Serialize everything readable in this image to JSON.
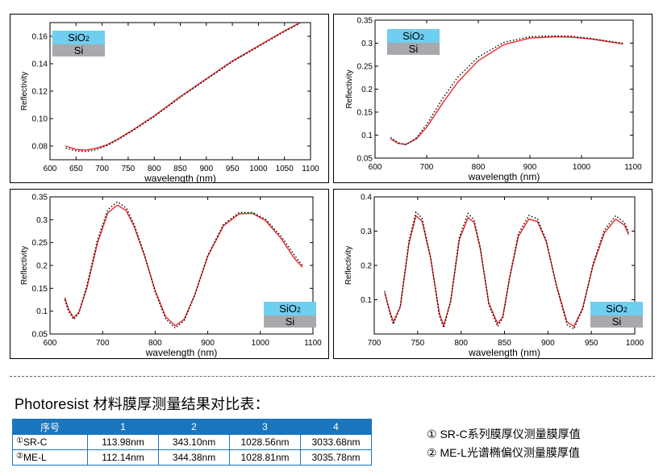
{
  "legend": {
    "top": "SiO",
    "top_sub": "2",
    "bottom": "Si"
  },
  "chart_data": [
    {
      "type": "line",
      "xlabel": "wavelength (nm)",
      "ylabel": "Reflectivity",
      "xlim": [
        600,
        1100
      ],
      "ylim": [
        0.07,
        0.17
      ],
      "xticks": [
        600,
        650,
        700,
        750,
        800,
        850,
        900,
        950,
        1000,
        1050,
        1100
      ],
      "yticks": [
        0.08,
        0.1,
        0.12,
        0.14,
        0.16
      ],
      "ytick_labels": [
        "0.08",
        "0.10",
        "0.12",
        "0.14",
        "0.16"
      ],
      "legend_placement": "top-left",
      "series": [
        {
          "style": "solid",
          "color": "#e8262b",
          "x": [
            630,
            650,
            670,
            690,
            710,
            730,
            760,
            800,
            850,
            900,
            950,
            1000,
            1050,
            1080
          ],
          "y": [
            0.08,
            0.0775,
            0.077,
            0.0785,
            0.081,
            0.085,
            0.092,
            0.102,
            0.116,
            0.129,
            0.142,
            0.153,
            0.164,
            0.17
          ]
        },
        {
          "style": "dotted",
          "color": "#000000",
          "x": [
            630,
            650,
            670,
            690,
            710,
            730,
            760,
            800,
            850,
            900,
            950,
            1000,
            1050,
            1080
          ],
          "y": [
            0.0785,
            0.0765,
            0.076,
            0.0775,
            0.0805,
            0.0845,
            0.0915,
            0.1015,
            0.1155,
            0.1285,
            0.1415,
            0.1525,
            0.1635,
            0.1695
          ]
        }
      ]
    },
    {
      "type": "line",
      "xlabel": "wavelength (nm)",
      "ylabel": "Reflectivity",
      "xlim": [
        600,
        1100
      ],
      "ylim": [
        0.05,
        0.35
      ],
      "xticks": [
        600,
        700,
        800,
        900,
        1000,
        1100
      ],
      "yticks": [
        0.05,
        0.1,
        0.15,
        0.2,
        0.25,
        0.3,
        0.35
      ],
      "ytick_labels": [
        "0.05",
        "0.1",
        "0.15",
        "0.2",
        "0.25",
        "0.3",
        "0.35"
      ],
      "legend_placement": "top-left",
      "series": [
        {
          "style": "solid",
          "color": "#e8262b",
          "x": [
            630,
            645,
            660,
            680,
            700,
            730,
            760,
            800,
            850,
            900,
            950,
            980,
            1020,
            1060,
            1080
          ],
          "y": [
            0.092,
            0.082,
            0.08,
            0.092,
            0.117,
            0.168,
            0.215,
            0.262,
            0.297,
            0.311,
            0.314,
            0.313,
            0.309,
            0.302,
            0.298
          ]
        },
        {
          "style": "dotted",
          "color": "#000000",
          "x": [
            630,
            645,
            660,
            680,
            700,
            730,
            760,
            800,
            850,
            900,
            950,
            980,
            1020,
            1060,
            1080
          ],
          "y": [
            0.095,
            0.083,
            0.079,
            0.094,
            0.123,
            0.178,
            0.226,
            0.27,
            0.302,
            0.314,
            0.316,
            0.315,
            0.31,
            0.303,
            0.3
          ]
        }
      ]
    },
    {
      "type": "line",
      "xlabel": "wavelength (nm)",
      "ylabel": "Reflectivity",
      "xlim": [
        600,
        1100
      ],
      "ylim": [
        0.05,
        0.35
      ],
      "xticks": [
        600,
        700,
        800,
        900,
        1000,
        1100
      ],
      "yticks": [
        0.05,
        0.1,
        0.15,
        0.2,
        0.25,
        0.3,
        0.35
      ],
      "ytick_labels": [
        "0.05",
        "0.1",
        "0.15",
        "0.2",
        "0.25",
        "0.3",
        "0.35"
      ],
      "legend_placement": "bottom-right",
      "series": [
        {
          "style": "solid",
          "color": "#e8262b",
          "x": [
            628,
            635,
            645,
            655,
            670,
            690,
            710,
            728,
            745,
            760,
            780,
            800,
            820,
            838,
            855,
            875,
            900,
            930,
            960,
            985,
            1010,
            1040,
            1065,
            1080
          ],
          "y": [
            0.13,
            0.105,
            0.085,
            0.098,
            0.15,
            0.248,
            0.315,
            0.332,
            0.32,
            0.285,
            0.22,
            0.145,
            0.088,
            0.068,
            0.082,
            0.135,
            0.22,
            0.287,
            0.313,
            0.314,
            0.298,
            0.258,
            0.215,
            0.196
          ]
        },
        {
          "style": "dotted",
          "color": "#000000",
          "x": [
            628,
            635,
            645,
            655,
            670,
            690,
            710,
            728,
            745,
            760,
            780,
            800,
            820,
            838,
            855,
            875,
            900,
            930,
            960,
            985,
            1010,
            1040,
            1065,
            1080
          ],
          "y": [
            0.125,
            0.1,
            0.082,
            0.096,
            0.155,
            0.255,
            0.322,
            0.339,
            0.326,
            0.29,
            0.222,
            0.142,
            0.083,
            0.063,
            0.079,
            0.134,
            0.222,
            0.29,
            0.316,
            0.316,
            0.301,
            0.263,
            0.222,
            0.2
          ]
        }
      ]
    },
    {
      "type": "line",
      "xlabel": "wavelength (nm)",
      "ylabel": "Reflectivity",
      "xlim": [
        700,
        1000
      ],
      "ylim": [
        0.0,
        0.4
      ],
      "xticks": [
        700,
        750,
        800,
        850,
        900,
        950,
        1000
      ],
      "yticks": [
        0.1,
        0.2,
        0.3,
        0.4
      ],
      "ytick_labels": [
        "0.1",
        "0.2",
        "0.3",
        "0.4"
      ],
      "legend_placement": "bottom-right",
      "series": [
        {
          "style": "solid",
          "color": "#e8262b",
          "x": [
            712,
            718,
            722,
            730,
            740,
            748,
            755,
            765,
            775,
            780,
            788,
            798,
            808,
            815,
            822,
            832,
            842,
            848,
            856,
            866,
            878,
            888,
            898,
            910,
            922,
            930,
            940,
            952,
            965,
            978,
            988,
            993
          ],
          "y": [
            0.12,
            0.065,
            0.035,
            0.08,
            0.265,
            0.345,
            0.33,
            0.22,
            0.06,
            0.025,
            0.095,
            0.275,
            0.34,
            0.325,
            0.25,
            0.09,
            0.03,
            0.05,
            0.165,
            0.285,
            0.335,
            0.328,
            0.27,
            0.14,
            0.035,
            0.022,
            0.075,
            0.2,
            0.295,
            0.335,
            0.318,
            0.29
          ]
        },
        {
          "style": "dotted",
          "color": "#000000",
          "x": [
            712,
            718,
            722,
            730,
            740,
            748,
            755,
            765,
            775,
            780,
            788,
            798,
            808,
            815,
            822,
            832,
            842,
            848,
            856,
            866,
            878,
            888,
            898,
            910,
            922,
            930,
            940,
            952,
            965,
            978,
            988,
            993
          ],
          "y": [
            0.125,
            0.06,
            0.028,
            0.08,
            0.272,
            0.356,
            0.338,
            0.222,
            0.052,
            0.018,
            0.095,
            0.283,
            0.352,
            0.333,
            0.253,
            0.085,
            0.022,
            0.046,
            0.168,
            0.292,
            0.346,
            0.336,
            0.273,
            0.138,
            0.027,
            0.015,
            0.073,
            0.205,
            0.303,
            0.345,
            0.325,
            0.296
          ]
        }
      ]
    }
  ],
  "heading": "Photoresist 材料膜厚测量结果对比表：",
  "table": {
    "header": [
      "序号",
      "1",
      "2",
      "3",
      "4"
    ],
    "rows": [
      {
        "marker": "①",
        "label": "SR-C",
        "values": [
          "113.98nm",
          "343.10nm",
          "1028.56nm",
          "3033.68nm"
        ]
      },
      {
        "marker": "②",
        "label": "ME-L",
        "values": [
          "112.14nm",
          "344.38nm",
          "1028.81nm",
          "3035.78nm"
        ]
      }
    ]
  },
  "notes": [
    "① SR-C系列膜厚仪测量膜厚值",
    "② ME-L光谱椭偏仪测量膜厚值"
  ]
}
